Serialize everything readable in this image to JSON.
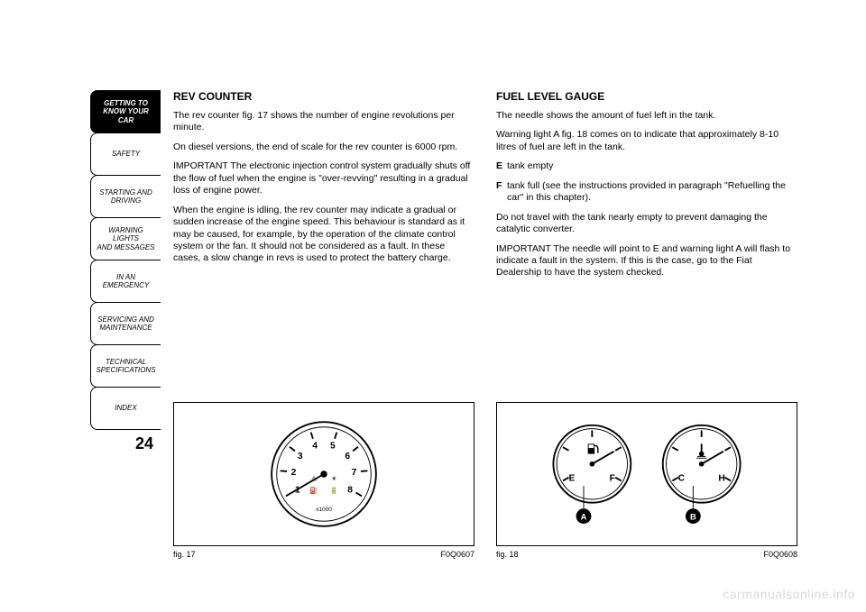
{
  "sidebar": {
    "tabs": [
      {
        "label": "GETTING TO\nKNOW YOUR CAR",
        "active": true
      },
      {
        "label": "SAFETY",
        "active": false
      },
      {
        "label": "STARTING AND\nDRIVING",
        "active": false
      },
      {
        "label": "WARNING LIGHTS\nAND MESSAGES",
        "active": false
      },
      {
        "label": "IN AN EMERGENCY",
        "active": false
      },
      {
        "label": "SERVICING AND\nMAINTENANCE",
        "active": false
      },
      {
        "label": "TECHNICAL\nSPECIFICATIONS",
        "active": false
      },
      {
        "label": "INDEX",
        "active": false
      }
    ]
  },
  "page_number": "24",
  "left": {
    "heading": "REV COUNTER",
    "p1": "The rev counter fig. 17 shows the number of engine revolutions per minute.",
    "p2": "On diesel versions, the end of scale for the rev counter is 6000 rpm.",
    "p3": "IMPORTANT The electronic injection control system gradually shuts off the flow of fuel when the engine is \"over-revving\" resulting in a gradual loss of engine power.",
    "p4": "When the engine is idling, the rev counter may indicate a gradual or sudden increase of the engine speed. This behaviour is standard as it may be caused, for example, by the operation of the climate control system or the fan. It should not be considered as a fault. In these cases, a slow change in revs is used to protect the battery charge.",
    "fig": {
      "label": "fig. 17",
      "code": "F0Q0607",
      "gauge": {
        "type": "rev-counter",
        "ticks": [
          "1",
          "2",
          "3",
          "4",
          "5",
          "6",
          "7",
          "8"
        ],
        "sub_label": "x1000",
        "needle_value": 0,
        "red_zone_from": 6,
        "colors": {
          "face": "#ffffff",
          "ring": "#000000",
          "tick": "#000000",
          "red": "#000000",
          "needle": "#000000"
        }
      }
    }
  },
  "right": {
    "heading": "FUEL LEVEL GAUGE",
    "p1": "The needle shows the amount of fuel left in the tank.",
    "p2": "Warning light A fig. 18 comes on to indicate that approximately 8-10 litres of fuel are left in the tank.",
    "defs": [
      {
        "term": "E",
        "desc": "tank empty"
      },
      {
        "term": "F",
        "desc": "tank full (see the instructions provided in paragraph \"Refuelling the car\" in this chapter)."
      }
    ],
    "p3": "Do not travel with the tank nearly empty to prevent damaging the catalytic converter.",
    "p4": "IMPORTANT The needle will point to E and warning light A will flash to indicate a fault in the system. If this is the case, go to the Fiat Dealership to have the system checked.",
    "fig": {
      "label": "fig. 18",
      "code": "F0Q0608",
      "fuel_gauge": {
        "letters": {
          "left": "E",
          "right": "F"
        },
        "callout": "A",
        "needle_angle": -60
      },
      "temp_gauge": {
        "letters": {
          "left": "C",
          "right": "H"
        },
        "callout": "B",
        "needle_angle": -60
      },
      "colors": {
        "face": "#ffffff",
        "ring": "#000000",
        "tick": "#000000",
        "needle": "#000000",
        "callout_bg": "#000000",
        "callout_fg": "#ffffff"
      }
    }
  },
  "watermark": "carmanualsonline.info"
}
